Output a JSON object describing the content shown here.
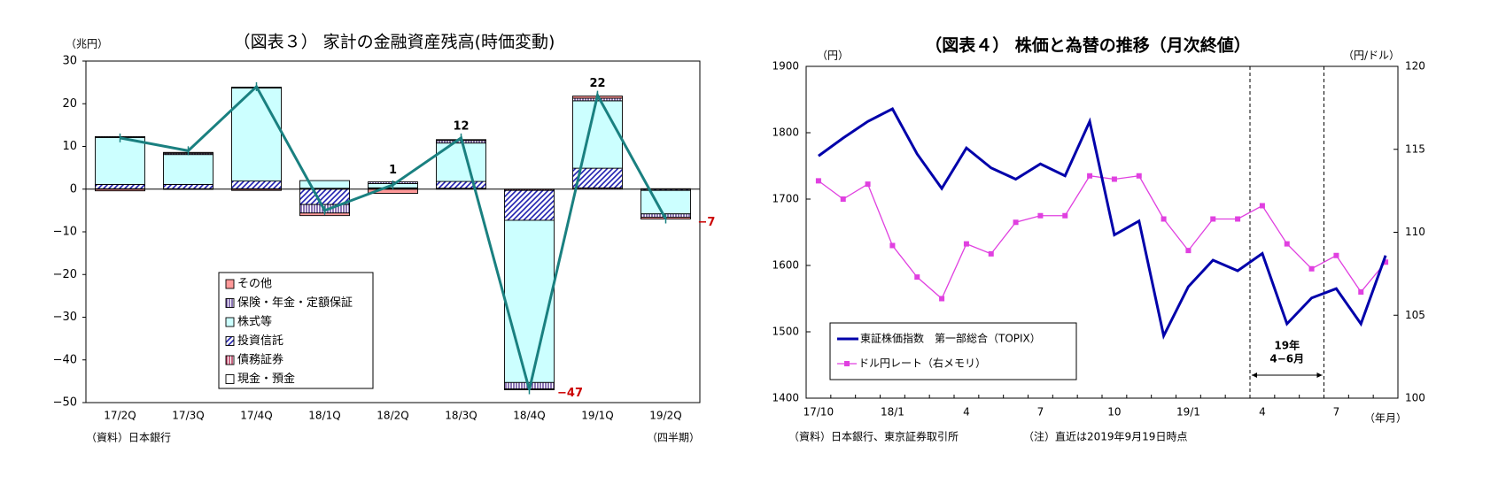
{
  "chart_data": [
    {
      "type": "bar",
      "title": "（図表３） 家計の金融資産残高(時価変動)",
      "y_unit_label": "（兆円）",
      "x_unit_label": "（四半期）",
      "source": "（資料）日本銀行",
      "ylim": [
        -50,
        30
      ],
      "yticks": [
        30,
        20,
        10,
        0,
        -10,
        -20,
        -30,
        -40,
        -50
      ],
      "grid": false,
      "legend_placement": "bottom-center",
      "categories": [
        "17/2Q",
        "17/3Q",
        "17/4Q",
        "18/1Q",
        "18/2Q",
        "18/3Q",
        "18/4Q",
        "19/1Q",
        "19/2Q"
      ],
      "series": [
        {
          "name": "現金・預金",
          "kind": "bar",
          "color": "#ffffff",
          "values": [
            0.0,
            0.0,
            0.0,
            0.0,
            0.0,
            0.0,
            0.0,
            0.0,
            0.0
          ]
        },
        {
          "name": "債務証券",
          "kind": "bar",
          "color": "#cc3366",
          "values": [
            0.1,
            0.1,
            0.1,
            0.2,
            0.2,
            0.2,
            -0.3,
            0.3,
            0.1
          ]
        },
        {
          "name": "投資信託",
          "kind": "bar",
          "color": "#3333cc",
          "values": [
            1.0,
            1.0,
            1.8,
            -3.6,
            0.1,
            1.6,
            -7.0,
            4.6,
            -0.3
          ]
        },
        {
          "name": "株式等",
          "kind": "bar",
          "color": "#ccffff",
          "values": [
            11.0,
            7.0,
            21.8,
            1.8,
            1.0,
            9.0,
            -38.0,
            15.8,
            -5.5
          ]
        },
        {
          "name": "保険・年金・定額保証",
          "kind": "bar",
          "color": "#9999ff",
          "values": [
            0.2,
            0.3,
            0.2,
            -2.0,
            0.4,
            0.6,
            -1.5,
            0.6,
            -0.8
          ]
        },
        {
          "name": "その他",
          "kind": "bar",
          "color": "#ff9999",
          "values": [
            -0.4,
            0.2,
            -0.3,
            -0.6,
            -1.0,
            0.2,
            -0.2,
            0.5,
            -0.4
          ]
        },
        {
          "name": "合計",
          "kind": "line",
          "color": "#1a8080",
          "values": [
            12,
            9,
            24,
            -5,
            1,
            12,
            -47,
            22,
            -7
          ]
        }
      ],
      "legend": [
        "その他",
        "保険・年金・定額保証",
        "株式等",
        "投資信託",
        "債務証券",
        "現金・預金"
      ],
      "data_labels": [
        {
          "category": "18/2Q",
          "text": "1",
          "color": "#000000"
        },
        {
          "category": "18/3Q",
          "text": "12",
          "color": "#000000"
        },
        {
          "category": "18/4Q",
          "text": "−47",
          "color": "#cc0000"
        },
        {
          "category": "19/1Q",
          "text": "22",
          "color": "#000000"
        },
        {
          "category": "19/2Q",
          "text": "−7",
          "color": "#cc0000"
        }
      ]
    },
    {
      "type": "line",
      "title": "（図表４） 株価と為替の推移（月次終値）",
      "y_left_unit_label": "（円）",
      "y_right_unit_label": "（円/ドル）",
      "x_unit_label": "（年月）",
      "source": "（資料）日本銀行、東京証券取引所",
      "note": "（注）直近は2019年9月19日時点",
      "ylim_left": [
        1400,
        1900
      ],
      "yticks_left": [
        1900,
        1800,
        1700,
        1600,
        1500,
        1400
      ],
      "ylim_right": [
        100,
        120
      ],
      "yticks_right": [
        120,
        115,
        110,
        105,
        100
      ],
      "grid": false,
      "legend_placement": "bottom-left",
      "x": [
        "17/10",
        "17/11",
        "17/12",
        "18/1",
        "18/2",
        "18/3",
        "18/4",
        "18/5",
        "18/6",
        "18/7",
        "18/8",
        "18/9",
        "18/10",
        "18/11",
        "18/12",
        "19/1",
        "19/2",
        "19/3",
        "19/4",
        "19/5",
        "19/6",
        "19/7",
        "19/8",
        "19/9"
      ],
      "x_tick_labels": [
        {
          "at": "17/10",
          "text": "17/10"
        },
        {
          "at": "18/1",
          "text": "18/1"
        },
        {
          "at": "18/4",
          "text": "4"
        },
        {
          "at": "18/7",
          "text": "7"
        },
        {
          "at": "18/10",
          "text": "10"
        },
        {
          "at": "19/1",
          "text": "19/1"
        },
        {
          "at": "19/4",
          "text": "4"
        },
        {
          "at": "19/7",
          "text": "7"
        }
      ],
      "series": [
        {
          "name": "東証株価指数　第一部総合（TOPIX）",
          "axis": "left",
          "color": "#0000aa",
          "values": [
            1765,
            1792,
            1817,
            1836,
            1768,
            1716,
            1777,
            1747,
            1730,
            1753,
            1735,
            1817,
            1646,
            1667,
            1494,
            1568,
            1608,
            1592,
            1618,
            1512,
            1551,
            1565,
            1512,
            1615
          ]
        },
        {
          "name": "ドル円レート（右メモリ）",
          "axis": "right",
          "color": "#e040e0",
          "values": [
            113.1,
            112.0,
            112.9,
            109.2,
            107.3,
            106.0,
            109.3,
            108.7,
            110.6,
            111.0,
            111.0,
            113.4,
            113.2,
            113.4,
            110.8,
            108.9,
            110.8,
            110.8,
            111.6,
            109.3,
            107.8,
            108.6,
            106.4,
            108.2
          ]
        }
      ],
      "annotation": {
        "text_line1": "19年",
        "text_line2": "4−6月",
        "from": "19/3",
        "to": "19/6"
      }
    }
  ]
}
